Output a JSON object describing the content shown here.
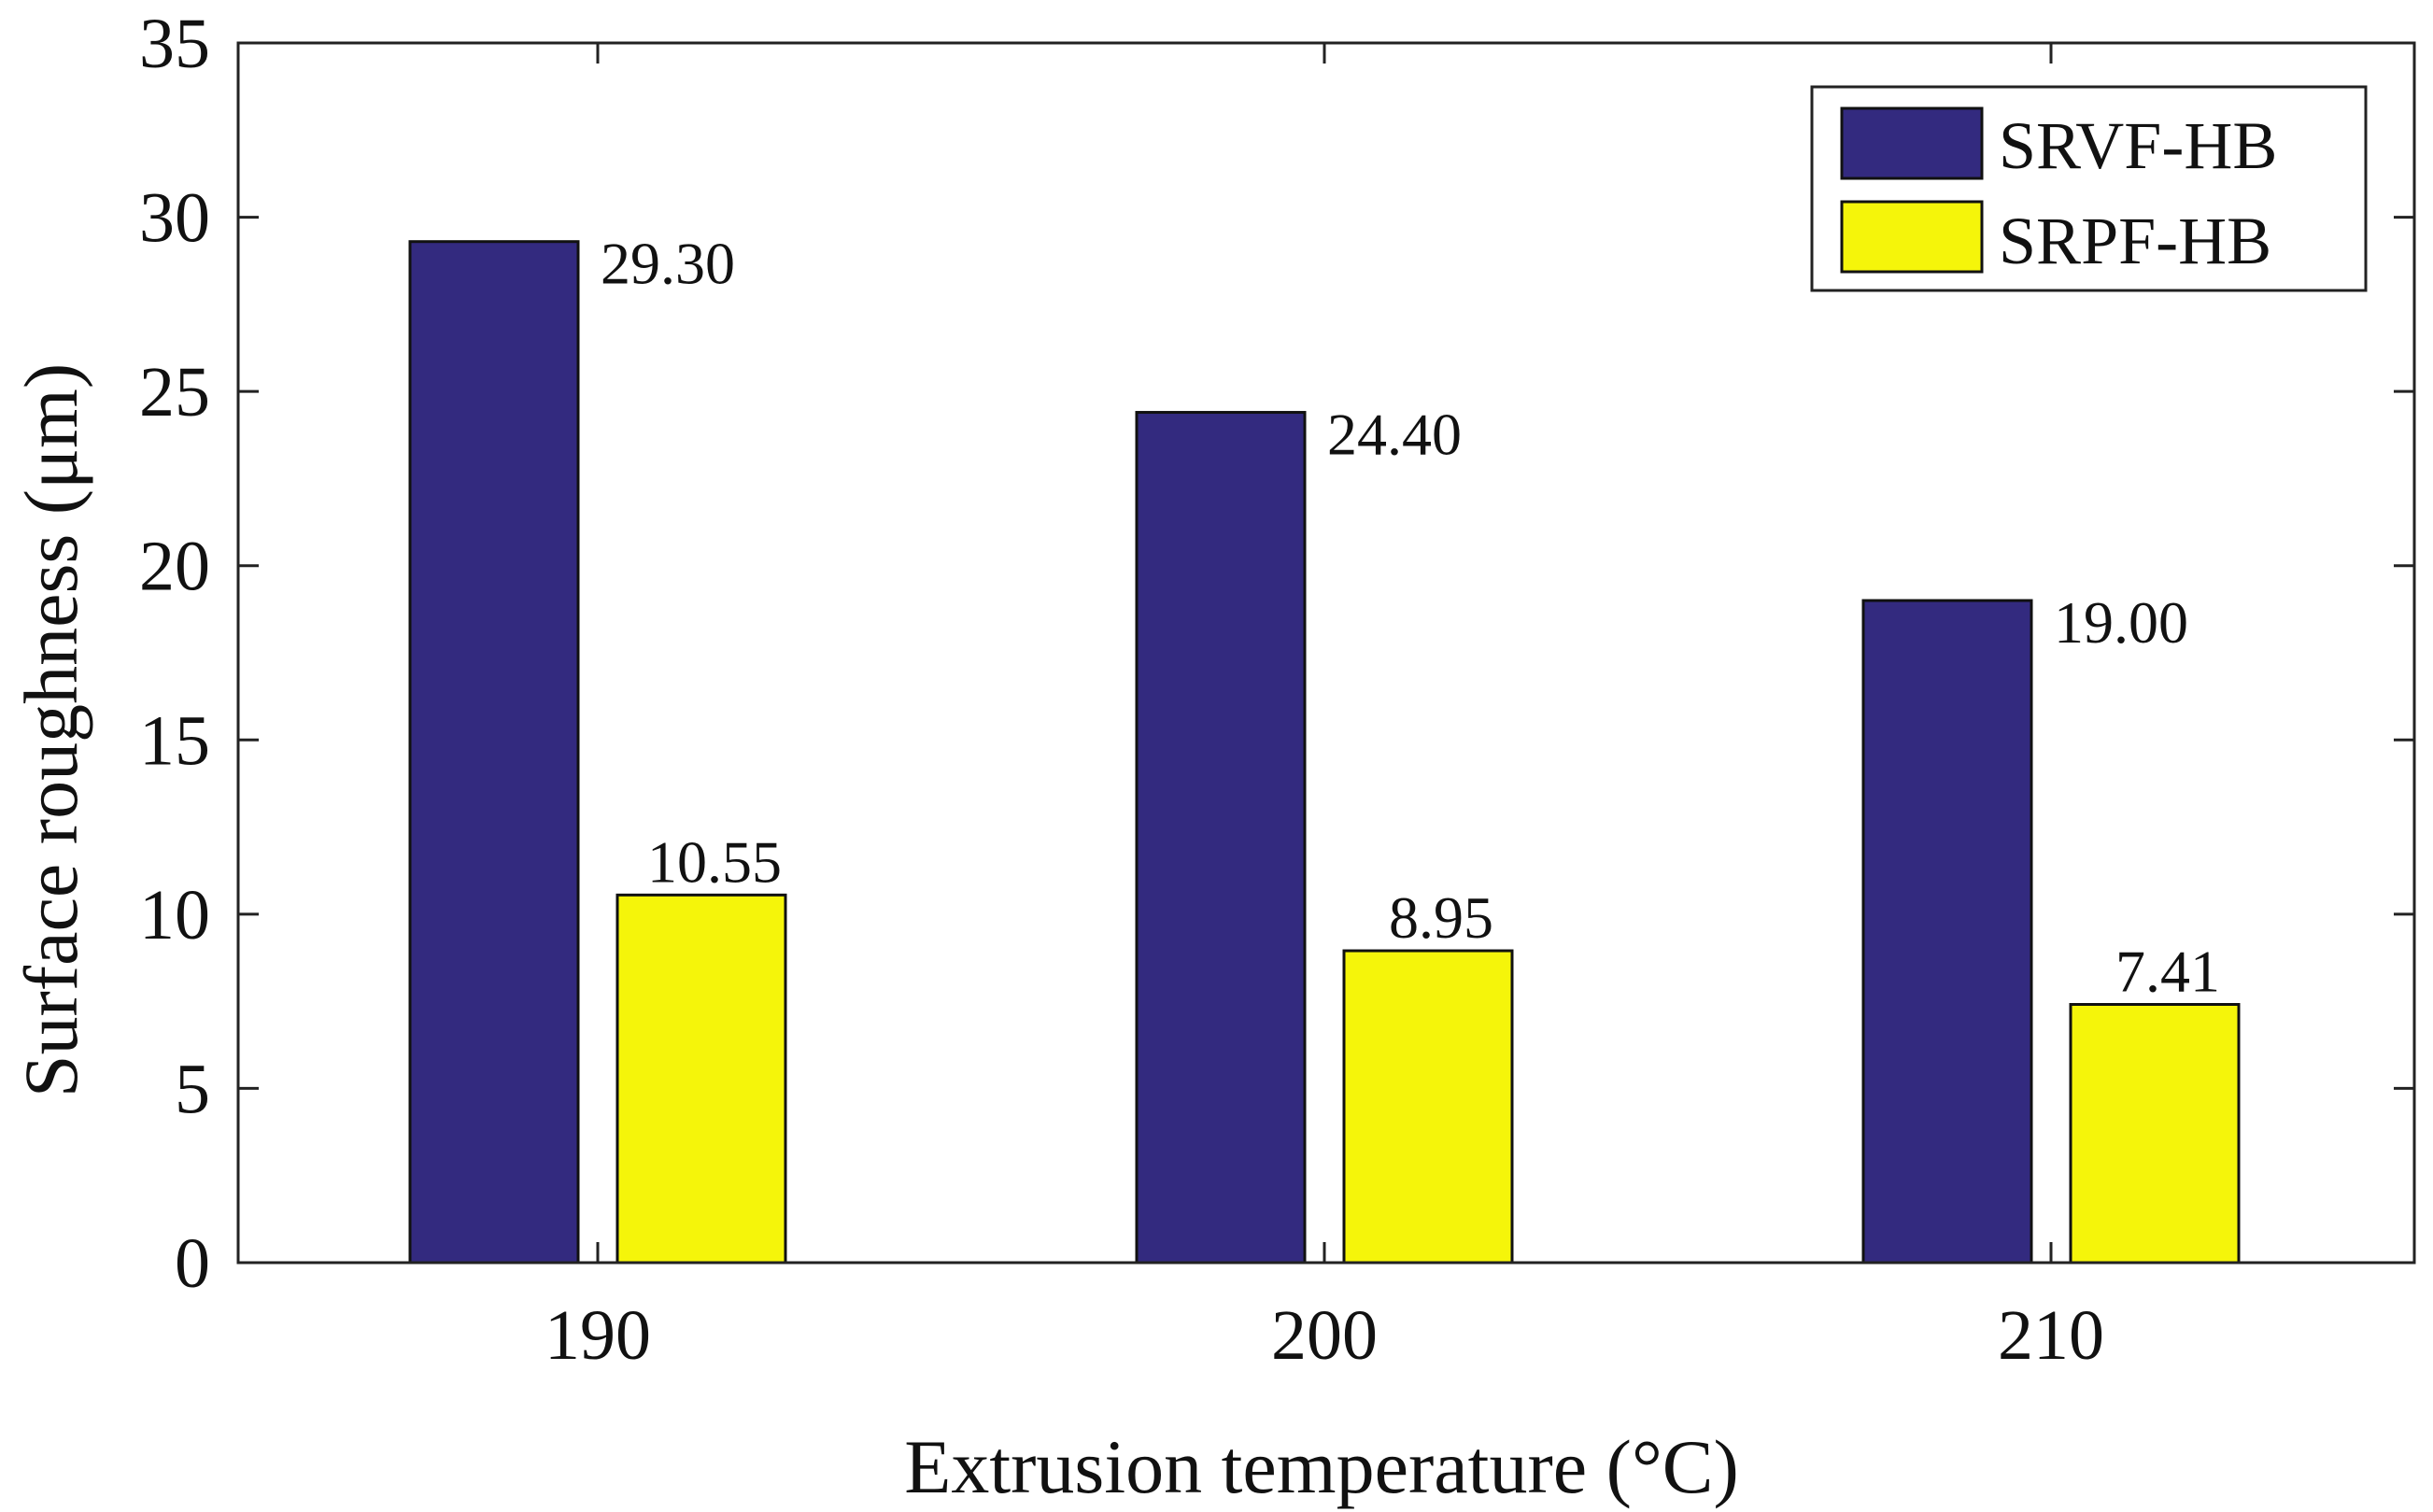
{
  "chart_data": {
    "type": "bar",
    "title": "",
    "xlabel": "Extrusion temperature (°C)",
    "ylabel": "Surface roughness (μm)",
    "categories": [
      "190",
      "200",
      "210"
    ],
    "ylim": [
      0,
      35
    ],
    "yticks": [
      0,
      5,
      10,
      15,
      20,
      25,
      30,
      35
    ],
    "ytick_labels": [
      "0",
      "5",
      "10",
      "15",
      "20",
      "25",
      "30",
      "35"
    ],
    "grid": false,
    "legend_position": "top-right",
    "series": [
      {
        "name": "SRVF-HB",
        "color": "#332a7f",
        "values": [
          29.3,
          24.4,
          19.0
        ],
        "labels": [
          "29.30",
          "24.40",
          "19.00"
        ]
      },
      {
        "name": "SRPF-HB",
        "color": "#f5f50a",
        "values": [
          10.55,
          8.95,
          7.41
        ],
        "labels": [
          "10.55",
          "8.95",
          "7.41"
        ]
      }
    ]
  }
}
